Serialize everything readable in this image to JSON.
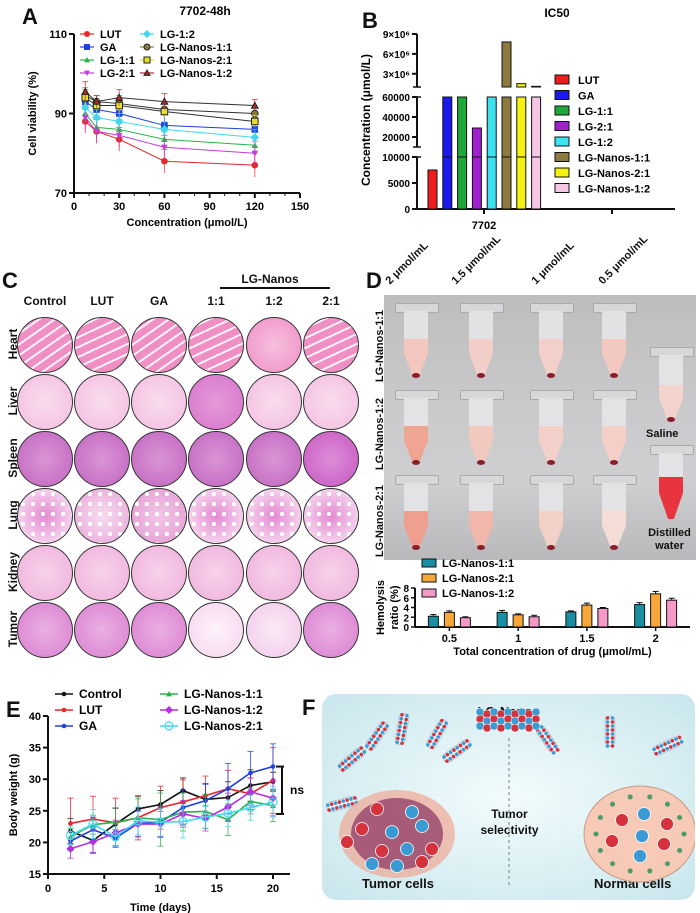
{
  "panels": {
    "A": {
      "letter": "A"
    },
    "B": {
      "letter": "B"
    },
    "C": {
      "letter": "C"
    },
    "D": {
      "letter": "D"
    },
    "E": {
      "letter": "E"
    },
    "F": {
      "letter": "F"
    }
  },
  "chart_data": [
    {
      "id": "A",
      "type": "line",
      "title": "7702-48h",
      "xlabel": "Concentration (μmol/L)",
      "ylabel": "Cell viability (%)",
      "xlim": [
        0,
        150
      ],
      "ylim": [
        70,
        110
      ],
      "xticks": [
        0,
        30,
        60,
        90,
        120,
        150
      ],
      "yticks": [
        70,
        90,
        110
      ],
      "x": [
        7.5,
        15,
        30,
        60,
        120
      ],
      "legend_position": "top-left",
      "series": [
        {
          "name": "LUT",
          "color": "#e8262a",
          "marker": "circle",
          "values": [
            88,
            85.5,
            83.5,
            78,
            77
          ],
          "err": [
            3,
            3,
            3,
            3,
            3
          ]
        },
        {
          "name": "GA",
          "color": "#1f3fe0",
          "marker": "square",
          "values": [
            93,
            91,
            90,
            87,
            86
          ],
          "err": [
            3,
            2.5,
            3,
            3,
            3
          ]
        },
        {
          "name": "LG-1:1",
          "color": "#2ab34a",
          "marker": "triangle",
          "values": [
            90,
            86.5,
            86,
            83.5,
            82
          ],
          "err": [
            2.5,
            2.5,
            2.5,
            2,
            2
          ]
        },
        {
          "name": "LG-2:1",
          "color": "#c13fd8",
          "marker": "triangle-down",
          "values": [
            89,
            85.5,
            84.5,
            81.5,
            80
          ],
          "err": [
            3,
            3,
            3,
            3,
            3
          ]
        },
        {
          "name": "LG-1:2",
          "color": "#43d7ef",
          "marker": "diamond",
          "values": [
            91.5,
            89,
            88,
            86,
            84
          ],
          "err": [
            2,
            2,
            2,
            2,
            2
          ]
        },
        {
          "name": "LG-Nanos-1:1",
          "color": "#8c7a3e",
          "marker": "circle-open",
          "values": [
            94.5,
            93,
            92.5,
            91,
            90
          ],
          "err": [
            2,
            1.5,
            2,
            2,
            1.5
          ]
        },
        {
          "name": "LG-Nanos-2:1",
          "color": "#e5e02a",
          "marker": "square-open",
          "values": [
            94,
            92,
            92,
            90.5,
            88
          ],
          "err": [
            2,
            1.5,
            2,
            1.5,
            1.5
          ]
        },
        {
          "name": "LG-Nanos-1:2",
          "color": "#b3282d",
          "marker": "triangle-open",
          "values": [
            95.5,
            93,
            94,
            93,
            92
          ],
          "err": [
            2.5,
            1.5,
            2,
            2,
            1.5
          ]
        }
      ]
    },
    {
      "id": "B",
      "type": "bar",
      "title": "IC50",
      "xlabel": "",
      "ylabel": "Concentration (μmol/L)",
      "categories": [
        "7702"
      ],
      "axis_segments": [
        {
          "range": [
            0,
            10000
          ],
          "ticks": [
            0,
            5000,
            10000
          ]
        },
        {
          "range": [
            10000,
            60000
          ],
          "ticks": [
            20000,
            40000,
            60000
          ]
        },
        {
          "range": [
            1000000,
            9000000
          ],
          "ticks": [
            "3×10⁶",
            "6×10⁶",
            "9×10⁶"
          ],
          "tick_values": [
            3000000,
            6000000,
            9000000
          ]
        }
      ],
      "legend_position": "right",
      "series": [
        {
          "name": "LUT",
          "color": "#ee1c1c",
          "value": 7500
        },
        {
          "name": "GA",
          "color": "#1a1aee",
          "value": 60000,
          "truncated": true
        },
        {
          "name": "LG-1:1",
          "color": "#1fa83a",
          "value": 60000,
          "truncated": true
        },
        {
          "name": "LG-2:1",
          "color": "#a020d0",
          "value": 29000
        },
        {
          "name": "LG-1:2",
          "color": "#3fe3ef",
          "value": 60000,
          "truncated": true
        },
        {
          "name": "LG-Nanos-1:1",
          "color": "#8c7a3e",
          "value": 7800000
        },
        {
          "name": "LG-Nanos-2:1",
          "color": "#f5f20f",
          "value": 1500000
        },
        {
          "name": "LG-Nanos-1:2",
          "color": "#f6c6e6",
          "value": 1100000
        }
      ]
    },
    {
      "id": "D-hemolysis",
      "type": "bar",
      "title": "",
      "xlabel": "Total concentration of drug (μmol/mL)",
      "ylabel": "Hemolysis ratio (%)",
      "categories": [
        "0.5",
        "1",
        "1.5",
        "2"
      ],
      "ylim": [
        0,
        8
      ],
      "yticks": [
        0,
        2,
        4,
        6,
        8
      ],
      "legend_position": "top-left",
      "series": [
        {
          "name": "LG-Nanos-1:1",
          "color": "#1a8fa3",
          "values": [
            2.2,
            3.0,
            3.1,
            4.6
          ],
          "err": [
            0.35,
            0.4,
            0.2,
            0.4
          ]
        },
        {
          "name": "LG-Nanos-2:1",
          "color": "#f7a63a",
          "values": [
            3.0,
            2.5,
            4.5,
            6.8
          ],
          "err": [
            0.3,
            0.2,
            0.4,
            0.5
          ]
        },
        {
          "name": "LG-Nanos-1:2",
          "color": "#f59ac8",
          "values": [
            1.9,
            2.1,
            3.8,
            5.5
          ],
          "err": [
            0.2,
            0.3,
            0.2,
            0.4
          ]
        }
      ]
    },
    {
      "id": "E",
      "type": "line",
      "title": "",
      "xlabel": "Time (days)",
      "ylabel": "Body weight (g)",
      "xlim": [
        0,
        20
      ],
      "ylim": [
        15,
        40
      ],
      "xticks": [
        0,
        5,
        10,
        15,
        20
      ],
      "yticks": [
        15,
        20,
        25,
        30,
        35,
        40
      ],
      "x": [
        2,
        4,
        6,
        8,
        10,
        12,
        14,
        16,
        18,
        20
      ],
      "annotation": "ns",
      "legend_position": "top",
      "series": [
        {
          "name": "Control",
          "color": "#111111",
          "marker": "circle-small",
          "values": [
            21.8,
            20.3,
            22.9,
            25.3,
            26.0,
            28.2,
            26.8,
            27.1,
            29.0,
            29.6
          ],
          "err": [
            2,
            2,
            2.5,
            2,
            2.2,
            2,
            2.5,
            2.5,
            2.5,
            1.5
          ]
        },
        {
          "name": "LUT",
          "color": "#e8262a",
          "marker": "circle-small",
          "values": [
            23.0,
            23.7,
            23.1,
            23.9,
            25.5,
            26.4,
            27.4,
            28.5,
            27.7,
            29.8
          ],
          "err": [
            4,
            3.6,
            3.9,
            3.5,
            3.4,
            3.5,
            3.1,
            2.9,
            2.5,
            5.2
          ]
        },
        {
          "name": "GA",
          "color": "#1f3fe0",
          "marker": "circle-small",
          "values": [
            20.2,
            22.0,
            20.7,
            23.0,
            23.2,
            25.5,
            26.6,
            28.5,
            31.0,
            32.0
          ],
          "err": [
            1.5,
            2,
            1.3,
            2.1,
            2.4,
            2.8,
            2.6,
            4,
            3.4,
            3.6
          ]
        },
        {
          "name": "LG-Nanos-1:1",
          "color": "#2ab34a",
          "marker": "triangle",
          "values": [
            20.9,
            22.8,
            23.2,
            23.9,
            23.6,
            24.8,
            24.9,
            23.6,
            26.5,
            25.8
          ],
          "err": [
            1.3,
            1.5,
            2.3,
            3,
            4.2,
            3,
            2.7,
            2.5,
            2,
            2.5
          ]
        },
        {
          "name": "LG-Nanos-1:2",
          "color": "#b42fe0",
          "marker": "diamond",
          "values": [
            19.0,
            20.1,
            21.5,
            22.9,
            22.9,
            24.5,
            23.8,
            25.6,
            28.0,
            27.0
          ],
          "err": [
            1.5,
            1.7,
            2,
            2,
            2,
            2.1,
            2,
            2.2,
            2.2,
            2.8
          ]
        },
        {
          "name": "LG-Nanos-2:1",
          "color": "#43d7ef",
          "marker": "circle-open",
          "values": [
            21.1,
            22.9,
            20.9,
            23.4,
            23.2,
            23.3,
            24.0,
            24.6,
            25.5,
            26.4
          ],
          "err": [
            1.5,
            2.3,
            1.5,
            2.2,
            2.2,
            2.6,
            1.7,
            2.1,
            2,
            2.4
          ]
        }
      ]
    }
  ],
  "panelC": {
    "group_label": "LG-Nanos",
    "columns": [
      "Control",
      "LUT",
      "GA",
      "1:1",
      "1:2",
      "2:1"
    ],
    "rows": [
      "Heart",
      "Liver",
      "Spleen",
      "Lung",
      "Kidney",
      "Tumor"
    ]
  },
  "panelD": {
    "concentrations": [
      "2 μmol/mL",
      "1.5 μmol/mL",
      "1 μmol/mL",
      "0.5 μmol/mL"
    ],
    "row_labels": [
      "LG-Nanos-1:1",
      "LG-Nanos-1:2",
      "LG-Nanos-2:1"
    ],
    "controls": [
      "Saline",
      "Distilled water"
    ]
  },
  "panelF": {
    "title": "LG-Nanos",
    "center_label": "Tumor selectivity",
    "left_label": "Tumor cells",
    "right_label": "Normal cells"
  }
}
